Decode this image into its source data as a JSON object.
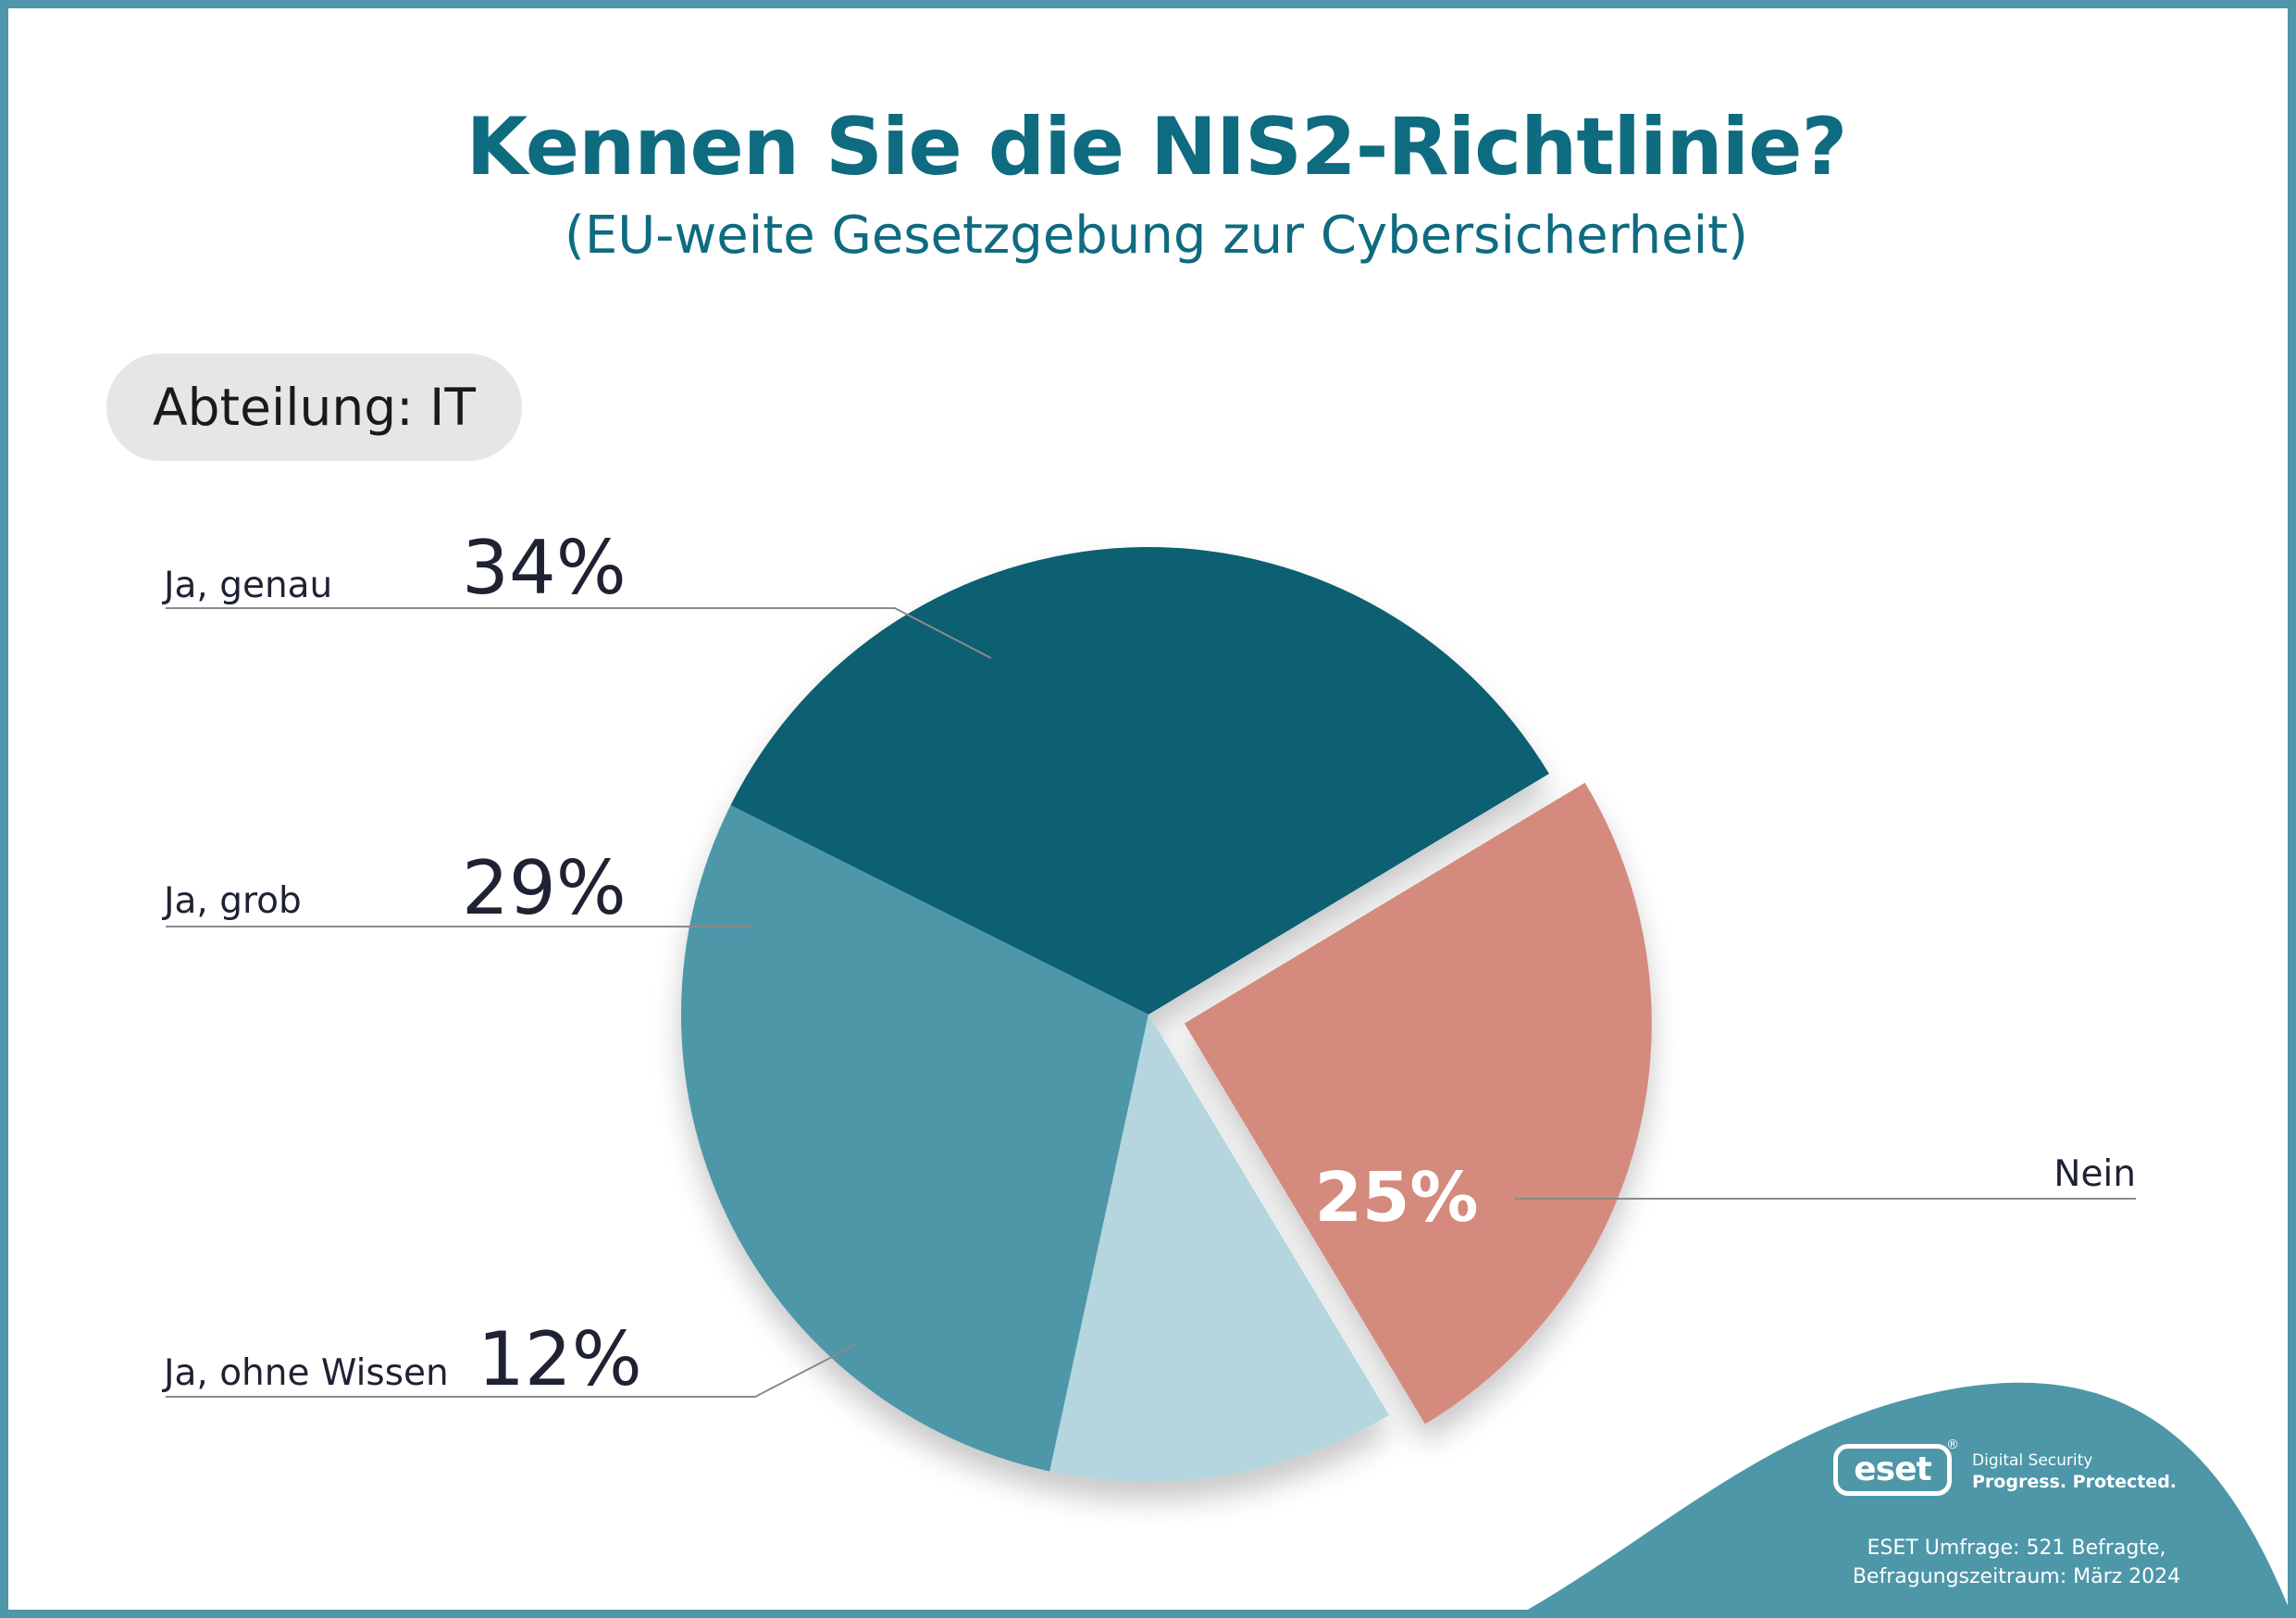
{
  "title": "Kennen Sie die NIS2-Richtlinie?",
  "subtitle": "(EU-weite Gesetzgebung zur Cybersicherheit)",
  "department": "Abteilung: IT",
  "chart_data": {
    "type": "pie",
    "title": "Kennen Sie die NIS2-Richtlinie?",
    "subtitle": "(EU-weite Gesetzgebung zur Cybersicherheit)",
    "unit": "%",
    "categories": [
      "Ja, genau",
      "Ja, grob",
      "Ja, ohne Wissen",
      "Nein"
    ],
    "values": [
      34,
      29,
      12,
      25
    ],
    "value_labels": [
      "34%",
      "29%",
      "12%",
      "25%"
    ],
    "exploded": [
      "Nein"
    ],
    "colors": [
      "#0a5f72",
      "#4d97a9",
      "#b5d6df",
      "#d48a7b"
    ],
    "start_angle_deg": -31,
    "direction": "counterclockwise"
  },
  "brand": {
    "logo_text": "eset",
    "registered_mark": "®",
    "tagline_line1": "Digital Security",
    "tagline_line2": "Progress. Protected."
  },
  "source": {
    "line1": "ESET Umfrage: 521 Befragte,",
    "line2": "Befragungszeitraum: März 2024"
  },
  "colors": {
    "frame": "#4d97a9",
    "title": "#0e6b80",
    "label_text": "#1f2233",
    "leader_line": "#8a8a8a",
    "pill_bg": "#e6e6e6",
    "footer_wave": "#4d97a9"
  }
}
